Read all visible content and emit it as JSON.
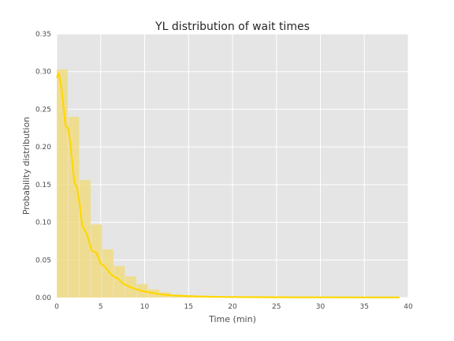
{
  "chart_data": {
    "type": "bar",
    "title": "YL distribution of wait times",
    "xlabel": "Time (min)",
    "ylabel": "Probability distribution",
    "xlim": [
      0,
      40
    ],
    "ylim": [
      0,
      0.35
    ],
    "xticks": [
      "0",
      "5",
      "10",
      "15",
      "20",
      "25",
      "30",
      "35",
      "40"
    ],
    "yticks": [
      "0.00",
      "0.05",
      "0.10",
      "0.15",
      "0.20",
      "0.25",
      "0.30",
      "0.35"
    ],
    "grid": true,
    "colors": {
      "background": "#e5e5e5",
      "grid": "#ffffff",
      "bar": "#f0dc82",
      "line": "#ffd700"
    },
    "histogram": {
      "bin_width": 1.3,
      "bin_starts": [
        0,
        1.3,
        2.6,
        3.9,
        5.2,
        6.5,
        7.8,
        9.1,
        10.4,
        11.7,
        13.0,
        14.3,
        15.6,
        16.9,
        18.2,
        19.5,
        20.8,
        22.1,
        23.4,
        24.7,
        26.0,
        27.3,
        28.6,
        29.9,
        31.2,
        32.5,
        33.8,
        35.1,
        36.4,
        37.7
      ],
      "values": [
        0.303,
        0.24,
        0.156,
        0.097,
        0.064,
        0.042,
        0.028,
        0.018,
        0.011,
        0.007,
        0.004,
        0.003,
        0.002,
        0.001,
        0.001,
        0.0005,
        0.0003,
        0.0002,
        0.0001,
        0.0001,
        0.0001,
        0.0001,
        0.0001,
        0.0001,
        0.0001,
        0.0001,
        0.0001,
        0.0001,
        0.0001,
        0.0001
      ]
    },
    "density_line": {
      "x": [
        0,
        0.2,
        0.5,
        0.8,
        1.0,
        1.3,
        1.6,
        1.8,
        2.0,
        2.3,
        2.6,
        2.9,
        3.2,
        3.6,
        4.0,
        4.5,
        5.0,
        5.5,
        6.0,
        6.5,
        7.0,
        7.5,
        8.0,
        9.0,
        10.0,
        11.0,
        12.0,
        13.0,
        14.0,
        15.0,
        16.0,
        18.0,
        20.0,
        25.0,
        30.0,
        35.0,
        39.0
      ],
      "y": [
        0.292,
        0.298,
        0.282,
        0.25,
        0.228,
        0.225,
        0.2,
        0.175,
        0.153,
        0.146,
        0.125,
        0.095,
        0.09,
        0.078,
        0.062,
        0.06,
        0.045,
        0.041,
        0.033,
        0.028,
        0.025,
        0.019,
        0.016,
        0.011,
        0.008,
        0.006,
        0.004,
        0.003,
        0.0025,
        0.002,
        0.0015,
        0.001,
        0.0007,
        0.0004,
        0.0003,
        0.0002,
        0.0002
      ]
    }
  }
}
